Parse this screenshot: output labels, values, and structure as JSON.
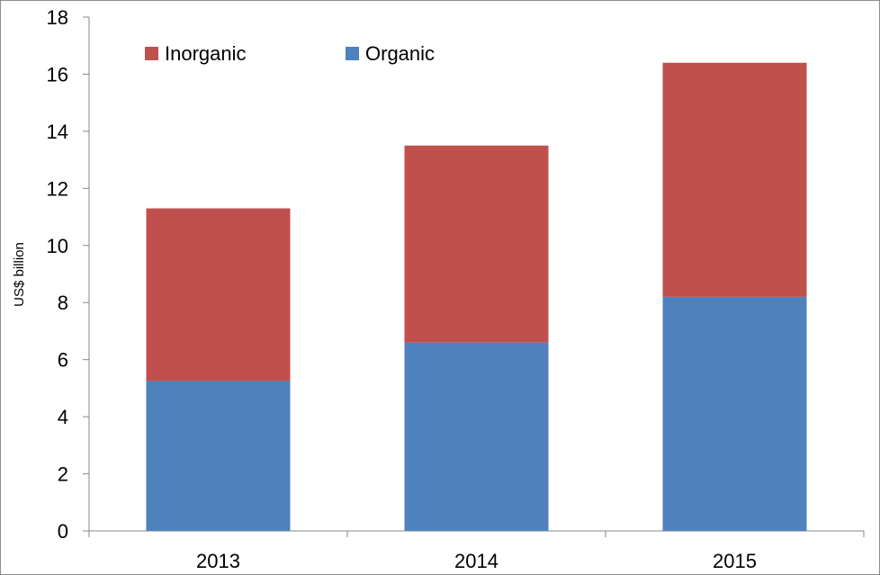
{
  "chart_data": {
    "type": "bar",
    "stacked": true,
    "categories": [
      "2013",
      "2014",
      "2015"
    ],
    "series": [
      {
        "name": "Organic",
        "color": "#4f81bd",
        "values": [
          5.25,
          6.6,
          8.2
        ]
      },
      {
        "name": "Inorganic",
        "color": "#c0504d",
        "values": [
          6.05,
          6.9,
          8.2
        ]
      }
    ],
    "legend_order": [
      "Inorganic",
      "Organic"
    ],
    "title": "",
    "xlabel": "",
    "ylabel": "US$ billion",
    "ylim": [
      0,
      18
    ],
    "yticks": [
      0,
      2,
      4,
      6,
      8,
      10,
      12,
      14,
      16,
      18
    ],
    "grid": false,
    "legend_position": "top-left"
  }
}
